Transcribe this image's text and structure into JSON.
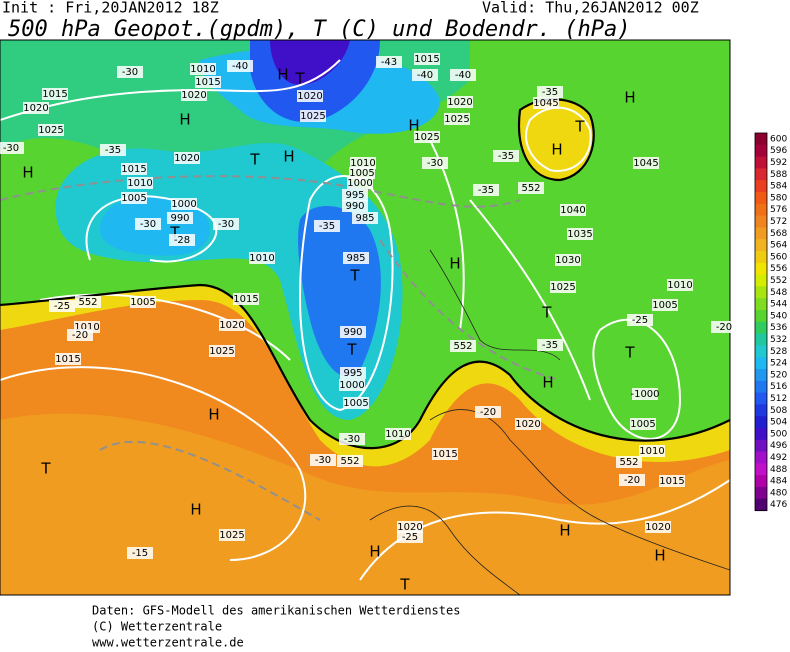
{
  "header": {
    "init": "Init : Fri,20JAN2012 18Z",
    "valid": "Valid: Thu,26JAN2012 00Z",
    "title": "500 hPa Geopot.(gpdm), T (C) und Bodendr. (hPa)"
  },
  "legend": {
    "levels": [
      "600",
      "596",
      "592",
      "588",
      "584",
      "580",
      "576",
      "572",
      "568",
      "564",
      "560",
      "556",
      "552",
      "548",
      "544",
      "540",
      "536",
      "532",
      "528",
      "524",
      "520",
      "516",
      "512",
      "508",
      "504",
      "500",
      "496",
      "492",
      "488",
      "484",
      "480",
      "476"
    ],
    "colors": [
      "#8c0030",
      "#a4003a",
      "#c01038",
      "#d82830",
      "#e84020",
      "#f05a14",
      "#f07018",
      "#f08420",
      "#f09c20",
      "#f0b420",
      "#f0cc10",
      "#f0e400",
      "#d4ec00",
      "#a8e410",
      "#80dc20",
      "#58d430",
      "#30cc60",
      "#20c8a0",
      "#20c8d0",
      "#20b8f0",
      "#2098f0",
      "#2078f0",
      "#2058f0",
      "#2038e0",
      "#2020d0",
      "#4010c8",
      "#7010c0",
      "#a010c8",
      "#c010c8",
      "#b000a8",
      "#800090",
      "#500070"
    ]
  },
  "map": {
    "labels": [
      "H",
      "T",
      "H",
      "1045",
      "1045",
      "-35",
      "1040",
      "1035",
      "1030",
      "1025",
      "H",
      "T",
      "H",
      "T",
      "-1000",
      "1005",
      "1010",
      "1015",
      "-20",
      "H",
      "H",
      "1020",
      "T",
      "H",
      "1020",
      "-25",
      "1015",
      "-20",
      "1020",
      "1010",
      "-30",
      "-30",
      "1005",
      "1000",
      "995",
      "990",
      "T",
      "985",
      "T",
      "985",
      "990",
      "995",
      "1000",
      "1005",
      "1010",
      "-35",
      "T",
      "H",
      "1020",
      "1025",
      "H",
      "T",
      "-40",
      "1010",
      "1015",
      "1020",
      "H",
      "1020",
      "-30",
      "1015",
      "1020",
      "1025",
      "H",
      "-30",
      "-35",
      "1015",
      "1010",
      "1005",
      "1000",
      "990",
      "T",
      "-30",
      "-28",
      "-30",
      "1010",
      "1015",
      "1005",
      "1010",
      "-25",
      "-20",
      "1015",
      "1020",
      "1025",
      "H",
      "T",
      "H",
      "1025",
      "-15",
      "1015",
      "1020",
      "1025",
      "1025",
      "H",
      "-40",
      "-40",
      "-43",
      "-30",
      "-35",
      "-35",
      "-35",
      "-25",
      "1005",
      "1010",
      "-20",
      "552",
      "552",
      "552",
      "552",
      "552"
    ]
  },
  "footer": {
    "line1": "Daten: GFS-Modell des amerikanischen Wetterdienstes",
    "line2": "(C) Wetterzentrale",
    "line3": "www.wetterzentrale.de"
  }
}
